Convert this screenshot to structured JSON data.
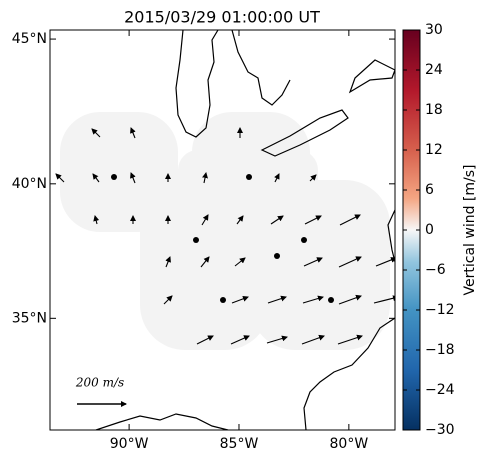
{
  "map": {
    "title": "2015/03/29 01:00:00 UT",
    "xlim": [
      -93.6,
      -77.9
    ],
    "ylim": [
      30.6,
      45.3
    ],
    "xticks": [
      {
        "value": -90,
        "label": "90°W"
      },
      {
        "value": -85,
        "label": "85°W"
      },
      {
        "value": -80,
        "label": "80°W"
      }
    ],
    "yticks": [
      {
        "value": 45,
        "label": "45°N"
      },
      {
        "value": 40,
        "label": "40°N"
      },
      {
        "value": 35,
        "label": "35°N"
      }
    ],
    "colorbar": {
      "label": "Vertical wind [m/s]",
      "lim": [
        -30,
        30
      ],
      "ticks": [
        30,
        24,
        18,
        12,
        6,
        0,
        {
          "value": -6,
          "label": "−6"
        },
        {
          "value": -12,
          "label": "−12"
        },
        {
          "value": -18,
          "label": "−18"
        },
        {
          "value": -24,
          "label": "−24"
        },
        {
          "value": -30,
          "label": "−30"
        }
      ]
    },
    "scale_label": "200 m/s"
  }
}
